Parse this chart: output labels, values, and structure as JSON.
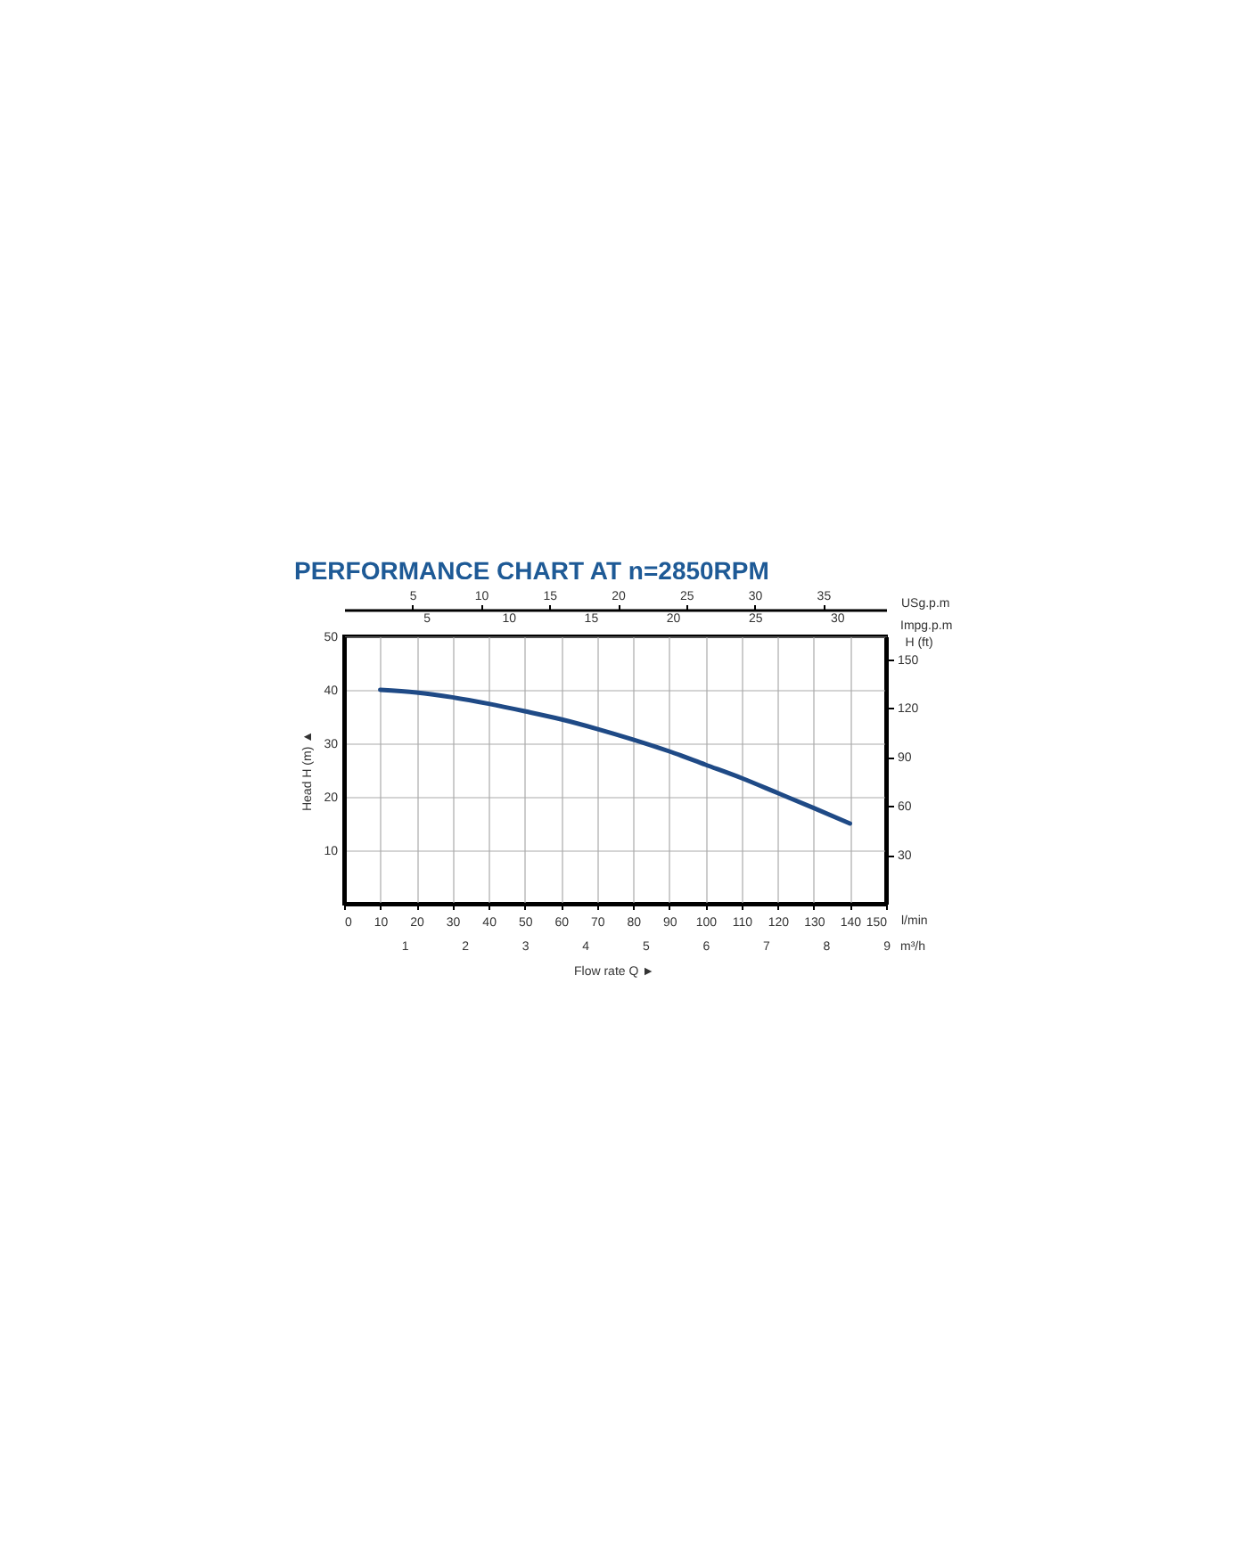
{
  "chart_data": {
    "type": "line",
    "title": "PERFORMANCE CHART AT n=2850RPM",
    "xlabel": "l/min",
    "ylabel": "Head H (m) ▲",
    "y2label": "H (ft)",
    "x2label": "USg.p.m",
    "x": [
      10,
      20,
      30,
      40,
      50,
      60,
      70,
      80,
      90,
      100,
      110,
      120,
      130,
      140
    ],
    "series": [
      {
        "color": "#1f4a86",
        "values": [
          40,
          39.5,
          38.6,
          37.4,
          36,
          34.5,
          32.7,
          30.7,
          28.5,
          26,
          23.5,
          20.7,
          17.9,
          15
        ]
      }
    ],
    "xlim": [
      0,
      150
    ],
    "xticks": [
      0,
      10,
      20,
      30,
      40,
      50,
      60,
      70,
      80,
      90,
      100,
      110,
      120,
      130,
      140,
      150
    ],
    "ylim": [
      0,
      50
    ],
    "yticks": [
      10,
      20,
      30,
      40,
      50
    ],
    "y2lim": [
      0,
      164
    ],
    "y2ticks": [
      30,
      60,
      90,
      120,
      150
    ],
    "x2lim": [
      0,
      39.6
    ],
    "x2ticks": [
      5,
      10,
      15,
      20,
      25,
      30,
      35
    ],
    "annotations": [
      "Flow rate Q ►",
      "Impg.p.m",
      "5",
      "10",
      "15",
      "20",
      "25",
      "30",
      "m³/h",
      "1",
      "2",
      "3",
      "4",
      "5",
      "6",
      "7",
      "8",
      "9"
    ],
    "grid": true,
    "marker": "none",
    "line_style": "solid"
  }
}
